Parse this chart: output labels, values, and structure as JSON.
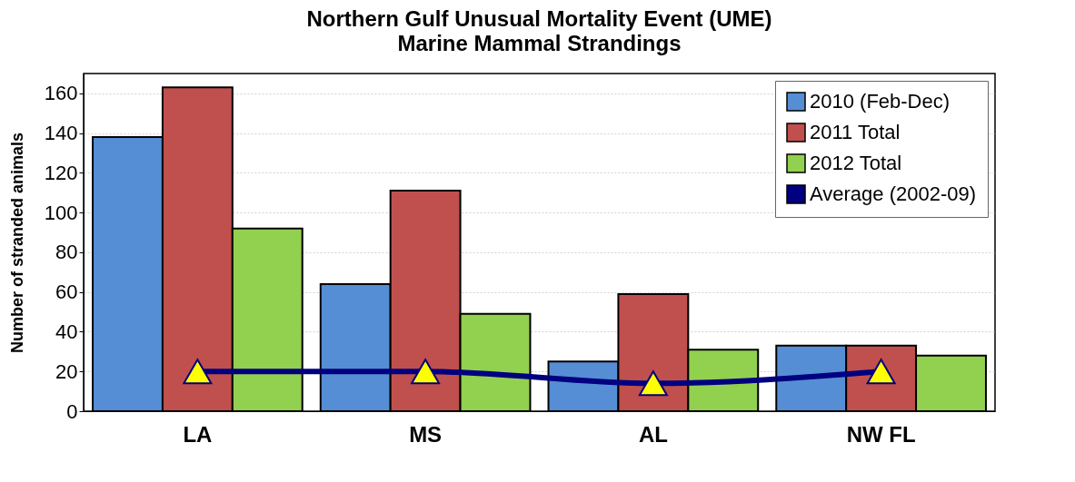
{
  "chart_data": {
    "type": "bar",
    "title": "Northern Gulf Unusual Mortality Event (UME)",
    "subtitle": "Marine Mammal Strandings",
    "ylabel": "Number of stranded animals",
    "categories": [
      "LA",
      "MS",
      "AL",
      "NW FL"
    ],
    "series": [
      {
        "name": "2010 (Feb-Dec)",
        "color": "#558ed5",
        "values": [
          138,
          64,
          25,
          33
        ]
      },
      {
        "name": "2011 Total",
        "color": "#c0504d",
        "values": [
          163,
          111,
          59,
          33
        ]
      },
      {
        "name": "2012 Total",
        "color": "#92d050",
        "values": [
          92,
          49,
          31,
          28
        ]
      },
      {
        "name": "Average (2002-09)",
        "type": "line",
        "color": "#000080",
        "values": [
          20,
          20,
          14,
          20
        ]
      }
    ],
    "ylim": [
      0,
      170
    ],
    "yticks": [
      0,
      20,
      40,
      60,
      80,
      100,
      120,
      140,
      160
    ],
    "grid": "y",
    "legend": "top right",
    "marker": "triangle"
  }
}
